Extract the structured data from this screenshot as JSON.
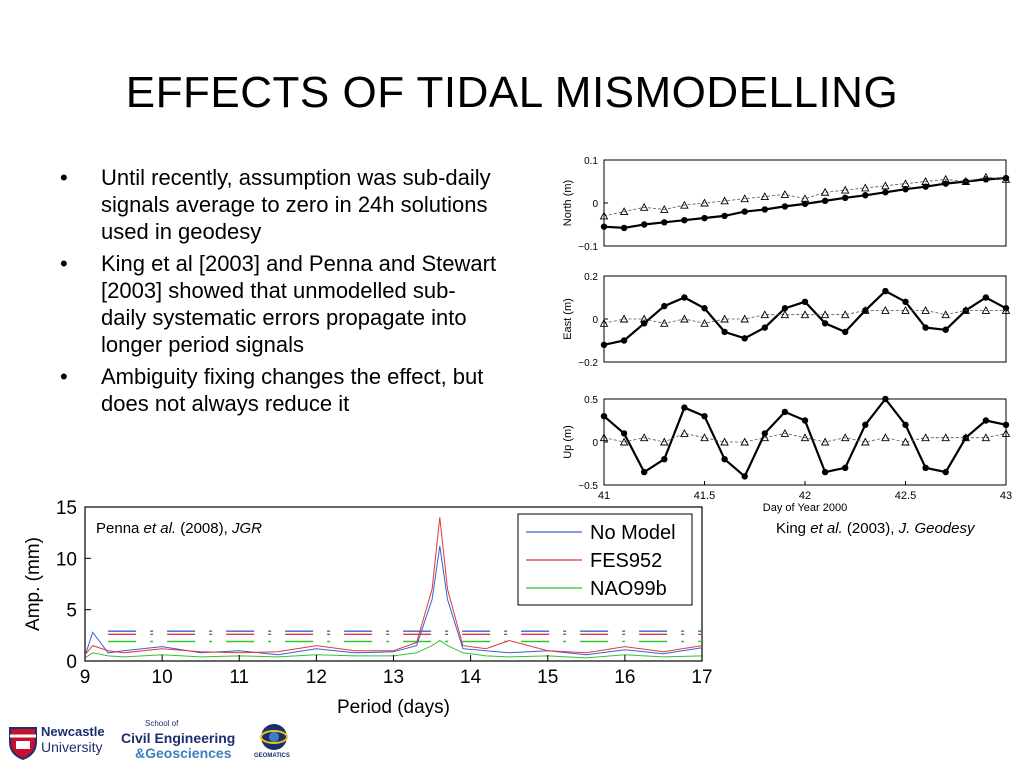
{
  "slide": {
    "title": "EFFECTS OF TIDAL MISMODELLING",
    "bullet_char": "•",
    "bullets": [
      "Until recently, assumption was sub-daily signals average to zero in 24h solutions used in geodesy",
      "King et al [2003] and Penna and Stewart [2003] showed that unmodelled sub-daily systematic errors propagate into longer period signals",
      "Ambiguity fixing changes the effect, but does not always reduce it"
    ],
    "caption_left": {
      "pre": "Penna ",
      "etal": "et al.",
      "year": " (2008), ",
      "journal": "JGR"
    },
    "caption_right": {
      "pre": "King ",
      "etal": "et al.",
      "year": " (2003), ",
      "journal": "J. Geodesy"
    }
  },
  "logos": {
    "newcastle_1": "Newcastle",
    "newcastle_2": "University",
    "school_1": "School of",
    "school_2": "Civil Engineering",
    "school_3": "&Geosciences",
    "geomatics": "GEOMATICS"
  },
  "chart_data": [
    {
      "type": "line",
      "panel": "North",
      "ylabel": "North (m)",
      "ylim": [
        -0.1,
        0.1
      ],
      "yticks": [
        "0.1",
        "0",
        "−0.1"
      ],
      "xlim": [
        41,
        43
      ],
      "series": [
        {
          "marker": "filled-circle",
          "x": [
            41.0,
            41.1,
            41.2,
            41.3,
            41.4,
            41.5,
            41.6,
            41.7,
            41.8,
            41.9,
            42.0,
            42.1,
            42.2,
            42.3,
            42.4,
            42.5,
            42.6,
            42.7,
            42.8,
            42.9,
            43.0
          ],
          "values": [
            -0.055,
            -0.058,
            -0.05,
            -0.045,
            -0.04,
            -0.035,
            -0.03,
            -0.02,
            -0.015,
            -0.008,
            -0.002,
            0.005,
            0.012,
            0.018,
            0.025,
            0.032,
            0.038,
            0.045,
            0.05,
            0.055,
            0.058
          ]
        },
        {
          "marker": "open-triangle",
          "x": [
            41.0,
            41.1,
            41.2,
            41.3,
            41.4,
            41.5,
            41.6,
            41.7,
            41.8,
            41.9,
            42.0,
            42.1,
            42.2,
            42.3,
            42.4,
            42.5,
            42.6,
            42.7,
            42.8,
            42.9,
            43.0
          ],
          "values": [
            -0.03,
            -0.02,
            -0.01,
            -0.015,
            -0.005,
            0.0,
            0.005,
            0.01,
            0.015,
            0.02,
            0.01,
            0.025,
            0.03,
            0.035,
            0.04,
            0.045,
            0.05,
            0.055,
            0.05,
            0.06,
            0.055
          ]
        }
      ]
    },
    {
      "type": "line",
      "panel": "East",
      "ylabel": "East (m)",
      "ylim": [
        -0.2,
        0.2
      ],
      "yticks": [
        "0.2",
        "0",
        "−0.2"
      ],
      "xlim": [
        41,
        43
      ],
      "series": [
        {
          "marker": "filled-circle",
          "x": [
            41.0,
            41.1,
            41.2,
            41.3,
            41.4,
            41.5,
            41.6,
            41.7,
            41.8,
            41.9,
            42.0,
            42.1,
            42.2,
            42.3,
            42.4,
            42.5,
            42.6,
            42.7,
            42.8,
            42.9,
            43.0
          ],
          "values": [
            -0.12,
            -0.1,
            -0.02,
            0.06,
            0.1,
            0.05,
            -0.06,
            -0.09,
            -0.04,
            0.05,
            0.08,
            -0.02,
            -0.06,
            0.04,
            0.13,
            0.08,
            -0.04,
            -0.05,
            0.04,
            0.1,
            0.05
          ]
        },
        {
          "marker": "open-triangle",
          "x": [
            41.0,
            41.1,
            41.2,
            41.3,
            41.4,
            41.5,
            41.6,
            41.7,
            41.8,
            41.9,
            42.0,
            42.1,
            42.2,
            42.3,
            42.4,
            42.5,
            42.6,
            42.7,
            42.8,
            42.9,
            43.0
          ],
          "values": [
            -0.02,
            0.0,
            0.0,
            -0.02,
            0.0,
            -0.02,
            0.0,
            0.0,
            0.02,
            0.02,
            0.02,
            0.02,
            0.02,
            0.04,
            0.04,
            0.04,
            0.04,
            0.02,
            0.04,
            0.04,
            0.04
          ]
        }
      ]
    },
    {
      "type": "line",
      "panel": "Up",
      "ylabel": "Up (m)",
      "ylim": [
        -0.5,
        0.5
      ],
      "yticks": [
        "0.5",
        "0",
        "−0.5"
      ],
      "xlim": [
        41,
        43
      ],
      "xticks": [
        "41",
        "41.5",
        "42",
        "42.5",
        "43"
      ],
      "xlabel": "Day of Year 2000",
      "series": [
        {
          "marker": "filled-circle",
          "x": [
            41.0,
            41.1,
            41.2,
            41.3,
            41.4,
            41.5,
            41.6,
            41.7,
            41.8,
            41.9,
            42.0,
            42.1,
            42.2,
            42.3,
            42.4,
            42.5,
            42.6,
            42.7,
            42.8,
            42.9,
            43.0
          ],
          "values": [
            0.3,
            0.1,
            -0.35,
            -0.2,
            0.4,
            0.3,
            -0.2,
            -0.4,
            0.1,
            0.35,
            0.25,
            -0.35,
            -0.3,
            0.2,
            0.5,
            0.2,
            -0.3,
            -0.35,
            0.05,
            0.25,
            0.2
          ]
        },
        {
          "marker": "open-triangle",
          "x": [
            41.0,
            41.1,
            41.2,
            41.3,
            41.4,
            41.5,
            41.6,
            41.7,
            41.8,
            41.9,
            42.0,
            42.1,
            42.2,
            42.3,
            42.4,
            42.5,
            42.6,
            42.7,
            42.8,
            42.9,
            43.0
          ],
          "values": [
            0.05,
            0.0,
            0.05,
            0.0,
            0.1,
            0.05,
            0.0,
            0.0,
            0.05,
            0.1,
            0.05,
            0.0,
            0.05,
            0.0,
            0.05,
            0.0,
            0.05,
            0.05,
            0.05,
            0.05,
            0.1
          ]
        }
      ]
    },
    {
      "type": "line",
      "xlabel": "Period (days)",
      "ylabel": "Amp. (mm)",
      "xlim": [
        9,
        17
      ],
      "ylim": [
        0,
        15
      ],
      "xticks": [
        "9",
        "10",
        "11",
        "12",
        "13",
        "14",
        "15",
        "16",
        "17"
      ],
      "yticks": [
        "15",
        "10",
        "5",
        "0"
      ],
      "legend": "top-right",
      "series": [
        {
          "name": "No Model",
          "color": "#3a5fd9",
          "x": [
            9,
            9.1,
            9.3,
            9.5,
            10,
            10.5,
            11,
            11.5,
            12,
            12.5,
            13,
            13.3,
            13.5,
            13.6,
            13.7,
            13.9,
            14.2,
            14.5,
            15,
            15.5,
            16,
            16.5,
            17
          ],
          "values": [
            0.5,
            2.8,
            0.8,
            1.0,
            1.4,
            0.8,
            1.0,
            0.6,
            1.2,
            0.8,
            0.9,
            1.5,
            6.0,
            11.2,
            6.0,
            1.2,
            1.0,
            0.8,
            1.0,
            0.6,
            1.1,
            0.7,
            1.3
          ]
        },
        {
          "name": "FES952",
          "color": "#e03a3a",
          "x": [
            9,
            9.1,
            9.3,
            9.5,
            10,
            10.5,
            11,
            11.5,
            12,
            12.5,
            13,
            13.3,
            13.5,
            13.6,
            13.7,
            13.9,
            14.2,
            14.5,
            15,
            15.5,
            16,
            16.5,
            17
          ],
          "values": [
            0.6,
            1.5,
            1.0,
            0.8,
            1.2,
            0.9,
            0.8,
            0.9,
            1.5,
            1.0,
            1.0,
            1.8,
            7.0,
            14.0,
            7.0,
            1.5,
            1.2,
            2.0,
            1.0,
            0.8,
            1.4,
            0.9,
            1.5
          ]
        },
        {
          "name": "NAO99b",
          "color": "#35c235",
          "x": [
            9,
            9.1,
            9.3,
            9.5,
            10,
            10.5,
            11,
            11.5,
            12,
            12.5,
            13,
            13.3,
            13.5,
            13.6,
            13.7,
            13.9,
            14.2,
            14.5,
            15,
            15.5,
            16,
            16.5,
            17
          ],
          "values": [
            0.3,
            0.8,
            0.5,
            0.4,
            0.6,
            0.4,
            0.5,
            0.4,
            0.6,
            0.5,
            0.5,
            0.8,
            1.5,
            2.0,
            1.5,
            0.8,
            0.5,
            0.4,
            0.5,
            0.3,
            0.6,
            0.4,
            0.5
          ]
        }
      ],
      "reference_levels": [
        {
          "color": "#3a5fd9",
          "value": 2.9
        },
        {
          "color": "#e03a3a",
          "value": 2.6
        },
        {
          "color": "#35c235",
          "value": 1.9
        }
      ]
    }
  ]
}
